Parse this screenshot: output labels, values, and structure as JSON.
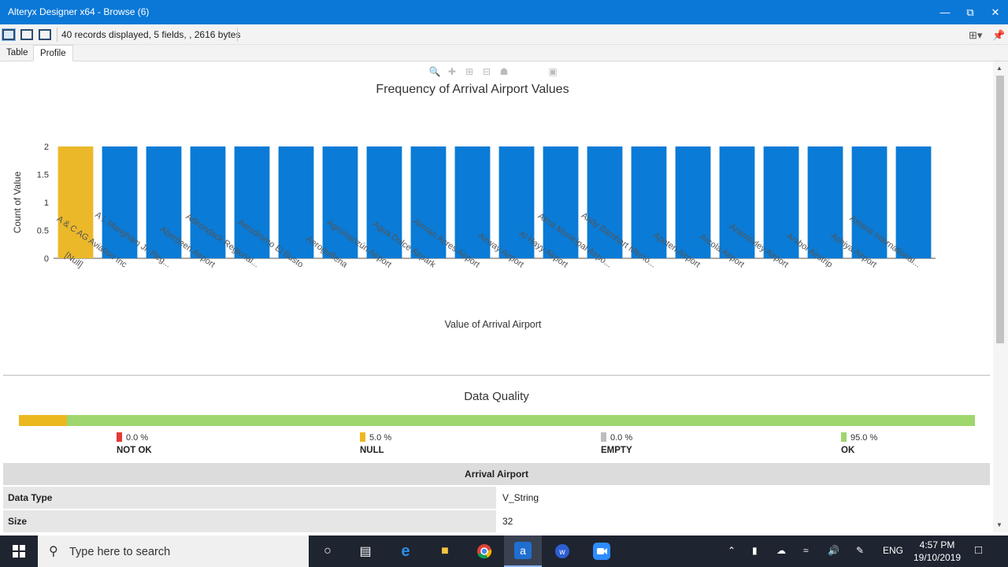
{
  "window": {
    "title": "Alteryx Designer x64 - Browse (6)"
  },
  "toolbar": {
    "status_text": "40 records displayed, 5 fields, , 2616 bytes"
  },
  "tabs": [
    {
      "label": "Table",
      "active": false
    },
    {
      "label": "Profile",
      "active": true
    }
  ],
  "chart_data": {
    "type": "bar",
    "title": "Frequency of Arrival Airport Values",
    "xlabel": "Value of Arrival Airport",
    "ylabel": "Count of Value",
    "ylim": [
      0,
      2
    ],
    "yticks": [
      "0",
      "0.5",
      "1",
      "1.5",
      "2"
    ],
    "categories": [
      "[Null]",
      "A & C AG Aviation Inc",
      "A L Mangham Jr. Reg...",
      "Aberdeen Airport",
      "Adirondack Regional...",
      "Aerodromo El Busto",
      "Aeroguillena",
      "Agromanzún Airport",
      "Agua Dulce Airpark",
      "Airman Acres Airport",
      "Airway Airport",
      "Al Hayy Airport",
      "Alma Municipal Airpo...",
      "Andy Barnhart Memo...",
      "Apoteri Airport",
      "Arcola Airport",
      "Ariamsvley Airport",
      "Arsbol Airstrip",
      "Ashiya Airport",
      "Astana International..."
    ],
    "values": [
      2,
      2,
      2,
      2,
      2,
      2,
      2,
      2,
      2,
      2,
      2,
      2,
      2,
      2,
      2,
      2,
      2,
      2,
      2,
      2
    ],
    "colors": {
      "null": "#ebb82a",
      "default": "#0a7bd6"
    }
  },
  "data_quality": {
    "title": "Data Quality",
    "items": [
      {
        "pct": "0.0 %",
        "label": "NOT OK",
        "color": "#e53935"
      },
      {
        "pct": "5.0 %",
        "label": "NULL",
        "color": "#ecb820"
      },
      {
        "pct": "0.0 %",
        "label": "EMPTY",
        "color": "#bdbdbd"
      },
      {
        "pct": "95.0 %",
        "label": "OK",
        "color": "#9fd66e"
      }
    ],
    "null_fraction": 0.05,
    "ok_fraction": 0.95
  },
  "stats": {
    "header": "Arrival Airport",
    "rows": [
      {
        "key": "Data Type",
        "value": "V_String"
      },
      {
        "key": "Size",
        "value": "32"
      }
    ]
  },
  "taskbar": {
    "search_placeholder": "Type here to search",
    "language": "ENG",
    "time": "4:57 PM",
    "date": "19/10/2019"
  }
}
